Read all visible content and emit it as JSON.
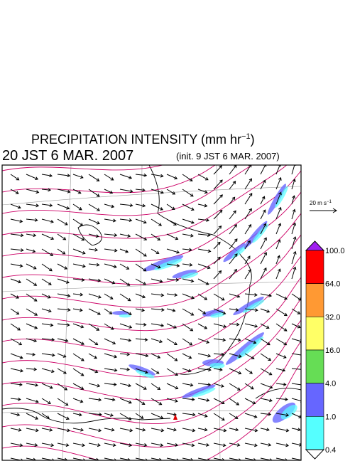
{
  "header": {
    "title": "PRECIPITATION INTENSITY (mm hr",
    "title_sup": "−1",
    "title_close": ")",
    "valid_time": "20 JST 6 MAR. 2007",
    "init_time": "(init. 9 JST 6 MAR. 2007)"
  },
  "wind_reference": {
    "label": "20 m s",
    "label_sup": "−1"
  },
  "colorbar": {
    "labels": [
      "100.0",
      "64.0",
      "32.0",
      "16.0",
      "4.0",
      "1.0",
      "0.4"
    ],
    "over_color": "#a020f0",
    "under_color": "#ffffff",
    "colors": [
      "#ff0000",
      "#ff9933",
      "#ffff66",
      "#66dd55",
      "#6666ff",
      "#55ffff"
    ]
  }
}
